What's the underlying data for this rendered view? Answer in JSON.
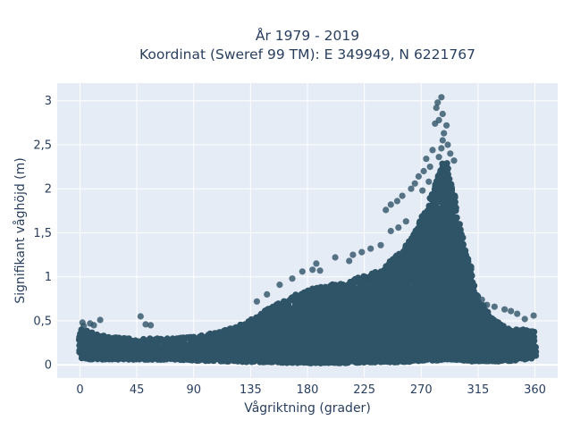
{
  "chart_data": {
    "type": "scatter",
    "title": [
      "År 1979 - 2019",
      "Koordinat (Sweref 99 TM): E 349949, N 6221767"
    ],
    "xlabel": "Vågriktning (grader)",
    "ylabel": "Signifikant våghöjd (m)",
    "xlim": [
      -18,
      378
    ],
    "ylim": [
      -0.15,
      3.2
    ],
    "xticks": [
      0,
      45,
      90,
      135,
      180,
      225,
      270,
      315,
      360
    ],
    "xtick_labels": [
      "0",
      "45",
      "90",
      "135",
      "180",
      "225",
      "270",
      "315",
      "360"
    ],
    "yticks": [
      0,
      0.5,
      1,
      1.5,
      2,
      2.5,
      3
    ],
    "ytick_labels": [
      "0",
      "0,5",
      "1",
      "1,5",
      "2",
      "2,5",
      "3"
    ],
    "grid": true,
    "background_color": "#e5ecf6",
    "marker_color": "#2f5468",
    "envelope": {
      "x": [
        0,
        10,
        20,
        30,
        45,
        60,
        75,
        90,
        105,
        120,
        135,
        150,
        165,
        180,
        195,
        210,
        225,
        240,
        255,
        265,
        272,
        278,
        283,
        287,
        290,
        293,
        296,
        300,
        305,
        310,
        315,
        325,
        335,
        345,
        355,
        360
      ],
      "y_upper": [
        0.42,
        0.36,
        0.33,
        0.31,
        0.3,
        0.3,
        0.3,
        0.32,
        0.36,
        0.42,
        0.52,
        0.65,
        0.76,
        0.85,
        0.9,
        0.94,
        1.02,
        1.1,
        1.3,
        1.5,
        1.72,
        1.92,
        2.15,
        2.35,
        2.3,
        2.1,
        1.95,
        1.6,
        1.3,
        1.05,
        0.75,
        0.55,
        0.45,
        0.42,
        0.4,
        0.38
      ],
      "y_lower": [
        0.08,
        0.06,
        0.06,
        0.06,
        0.06,
        0.06,
        0.06,
        0.05,
        0.04,
        0.04,
        0.03,
        0.03,
        0.02,
        0.02,
        0.02,
        0.02,
        0.03,
        0.03,
        0.03,
        0.04,
        0.05,
        0.05,
        0.05,
        0.06,
        0.06,
        0.06,
        0.05,
        0.05,
        0.05,
        0.04,
        0.04,
        0.04,
        0.04,
        0.05,
        0.06,
        0.08
      ]
    },
    "outlier_points": [
      {
        "x": 286,
        "y": 3.04
      },
      {
        "x": 283,
        "y": 2.98
      },
      {
        "x": 282,
        "y": 2.92
      },
      {
        "x": 287,
        "y": 2.85
      },
      {
        "x": 284,
        "y": 2.78
      },
      {
        "x": 281,
        "y": 2.74
      },
      {
        "x": 290,
        "y": 2.72
      },
      {
        "x": 288,
        "y": 2.63
      },
      {
        "x": 287,
        "y": 2.55
      },
      {
        "x": 291,
        "y": 2.5
      },
      {
        "x": 286,
        "y": 2.46
      },
      {
        "x": 279,
        "y": 2.44
      },
      {
        "x": 293,
        "y": 2.4
      },
      {
        "x": 284,
        "y": 2.36
      },
      {
        "x": 296,
        "y": 2.32
      },
      {
        "x": 274,
        "y": 2.34
      },
      {
        "x": 277,
        "y": 2.25
      },
      {
        "x": 272,
        "y": 2.2
      },
      {
        "x": 268,
        "y": 2.14
      },
      {
        "x": 265,
        "y": 2.06
      },
      {
        "x": 262,
        "y": 2.0
      },
      {
        "x": 255,
        "y": 1.92
      },
      {
        "x": 251,
        "y": 1.86
      },
      {
        "x": 246,
        "y": 1.82
      },
      {
        "x": 242,
        "y": 1.76
      },
      {
        "x": 276,
        "y": 2.08
      },
      {
        "x": 271,
        "y": 1.98
      },
      {
        "x": 258,
        "y": 1.63
      },
      {
        "x": 252,
        "y": 1.56
      },
      {
        "x": 246,
        "y": 1.52
      },
      {
        "x": 238,
        "y": 1.36
      },
      {
        "x": 230,
        "y": 1.32
      },
      {
        "x": 223,
        "y": 1.28
      },
      {
        "x": 216,
        "y": 1.25
      },
      {
        "x": 202,
        "y": 1.22
      },
      {
        "x": 213,
        "y": 1.18
      },
      {
        "x": 187,
        "y": 1.15
      },
      {
        "x": 190,
        "y": 1.07
      },
      {
        "x": 184,
        "y": 1.08
      },
      {
        "x": 176,
        "y": 1.06
      },
      {
        "x": 168,
        "y": 0.98
      },
      {
        "x": 158,
        "y": 0.91
      },
      {
        "x": 148,
        "y": 0.8
      },
      {
        "x": 140,
        "y": 0.72
      },
      {
        "x": 48,
        "y": 0.55
      },
      {
        "x": 16,
        "y": 0.51
      },
      {
        "x": 8,
        "y": 0.47
      },
      {
        "x": 2,
        "y": 0.48
      },
      {
        "x": 3,
        "y": 0.44
      },
      {
        "x": 11,
        "y": 0.45
      },
      {
        "x": 52,
        "y": 0.46
      },
      {
        "x": 56,
        "y": 0.45
      },
      {
        "x": 336,
        "y": 0.63
      },
      {
        "x": 341,
        "y": 0.61
      },
      {
        "x": 346,
        "y": 0.58
      },
      {
        "x": 359,
        "y": 0.56
      },
      {
        "x": 352,
        "y": 0.52
      },
      {
        "x": 322,
        "y": 0.68
      },
      {
        "x": 318,
        "y": 0.74
      },
      {
        "x": 328,
        "y": 0.66
      },
      {
        "x": 307,
        "y": 1.1
      },
      {
        "x": 302,
        "y": 1.35
      },
      {
        "x": 299,
        "y": 1.6
      },
      {
        "x": 297,
        "y": 1.85
      },
      {
        "x": 294,
        "y": 2.02
      }
    ]
  }
}
